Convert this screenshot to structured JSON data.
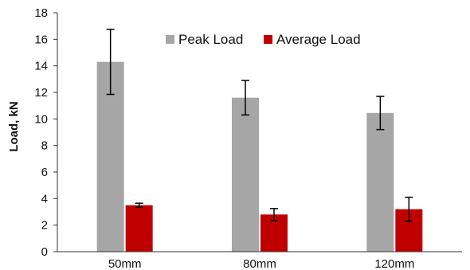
{
  "chart_data": {
    "type": "bar",
    "title": "",
    "xlabel": "",
    "ylabel": "Load, kN",
    "ylim": [
      0,
      18
    ],
    "yticks": [
      0,
      2,
      4,
      6,
      8,
      10,
      12,
      14,
      16,
      18
    ],
    "categories": [
      "50mm",
      "80mm",
      "120mm"
    ],
    "grid": false,
    "legend_position": "top-center",
    "series": [
      {
        "name": "Peak Load",
        "color": "#a6a6a6",
        "values": [
          14.3,
          11.6,
          10.45
        ],
        "errors": [
          2.45,
          1.3,
          1.25
        ]
      },
      {
        "name": "Average Load",
        "color": "#c00000",
        "values": [
          3.5,
          2.8,
          3.2
        ],
        "errors": [
          0.15,
          0.45,
          0.9
        ]
      }
    ]
  }
}
